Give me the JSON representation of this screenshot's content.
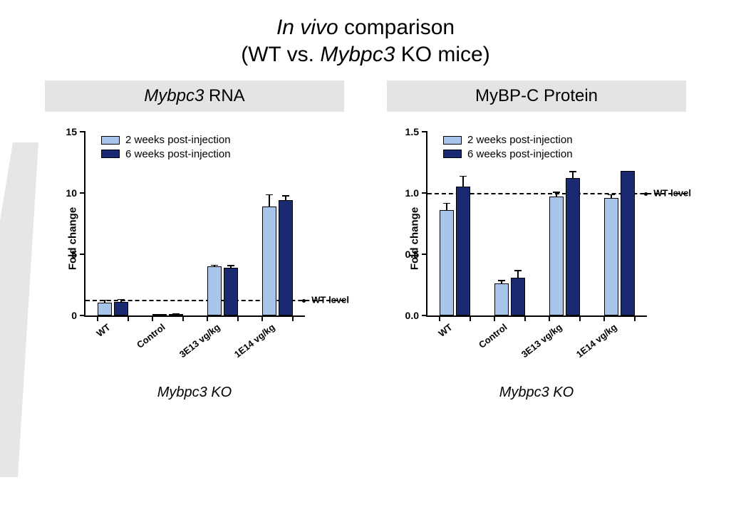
{
  "title": {
    "prefix_italic": "In vivo",
    "rest_line1": " comparison",
    "line2_pre": "(WT vs. ",
    "line2_italic": "Mybpc3",
    "line2_post": " KO mice)"
  },
  "legend": {
    "series1": "2 weeks post-injection",
    "series2": "6 weeks post-injection",
    "color1": "#a7c4ea",
    "color2": "#1a2a70"
  },
  "common": {
    "ylabel": "Fold change",
    "wt_text": "WT level",
    "bar_border": "#000000",
    "background": "#ffffff"
  },
  "charts": [
    {
      "id": "rna",
      "header_italic": "Mybpc3",
      "header_plain": " RNA",
      "type": "bar",
      "ylim": [
        0,
        15
      ],
      "yticks": [
        0,
        5,
        10,
        15
      ],
      "wt_level": 1.3,
      "under_label": "Mybpc3 KO",
      "categories": [
        "WT",
        "Control",
        "3E13 vg/kg",
        "1E14 vg/kg"
      ],
      "series": [
        {
          "name": "2 weeks",
          "color": "#a7c4ea",
          "values": [
            1.05,
            0.08,
            4.0,
            8.9
          ],
          "err": [
            0.25,
            0.05,
            0.15,
            1.0
          ]
        },
        {
          "name": "6 weeks",
          "color": "#1a2a70",
          "values": [
            1.1,
            0.12,
            3.9,
            9.4
          ],
          "err": [
            0.25,
            0.05,
            0.2,
            0.4
          ]
        }
      ]
    },
    {
      "id": "protein",
      "header_italic": "",
      "header_plain": "MyBP-C Protein",
      "type": "bar",
      "ylim": [
        0.0,
        1.5
      ],
      "yticks": [
        0.0,
        0.5,
        1.0,
        1.5
      ],
      "wt_level": 1.0,
      "under_label": "Mybpc3 KO",
      "categories": [
        "WT",
        "Control",
        "3E13 vg/kg",
        "1E14 vg/kg"
      ],
      "series": [
        {
          "name": "2 weeks",
          "color": "#a7c4ea",
          "values": [
            0.86,
            0.26,
            0.97,
            0.96
          ],
          "err": [
            0.06,
            0.03,
            0.04,
            0.03
          ]
        },
        {
          "name": "6 weeks",
          "color": "#1a2a70",
          "values": [
            1.05,
            0.31,
            1.12,
            1.18
          ],
          "err": [
            0.09,
            0.06,
            0.06,
            0.0
          ]
        }
      ]
    }
  ]
}
